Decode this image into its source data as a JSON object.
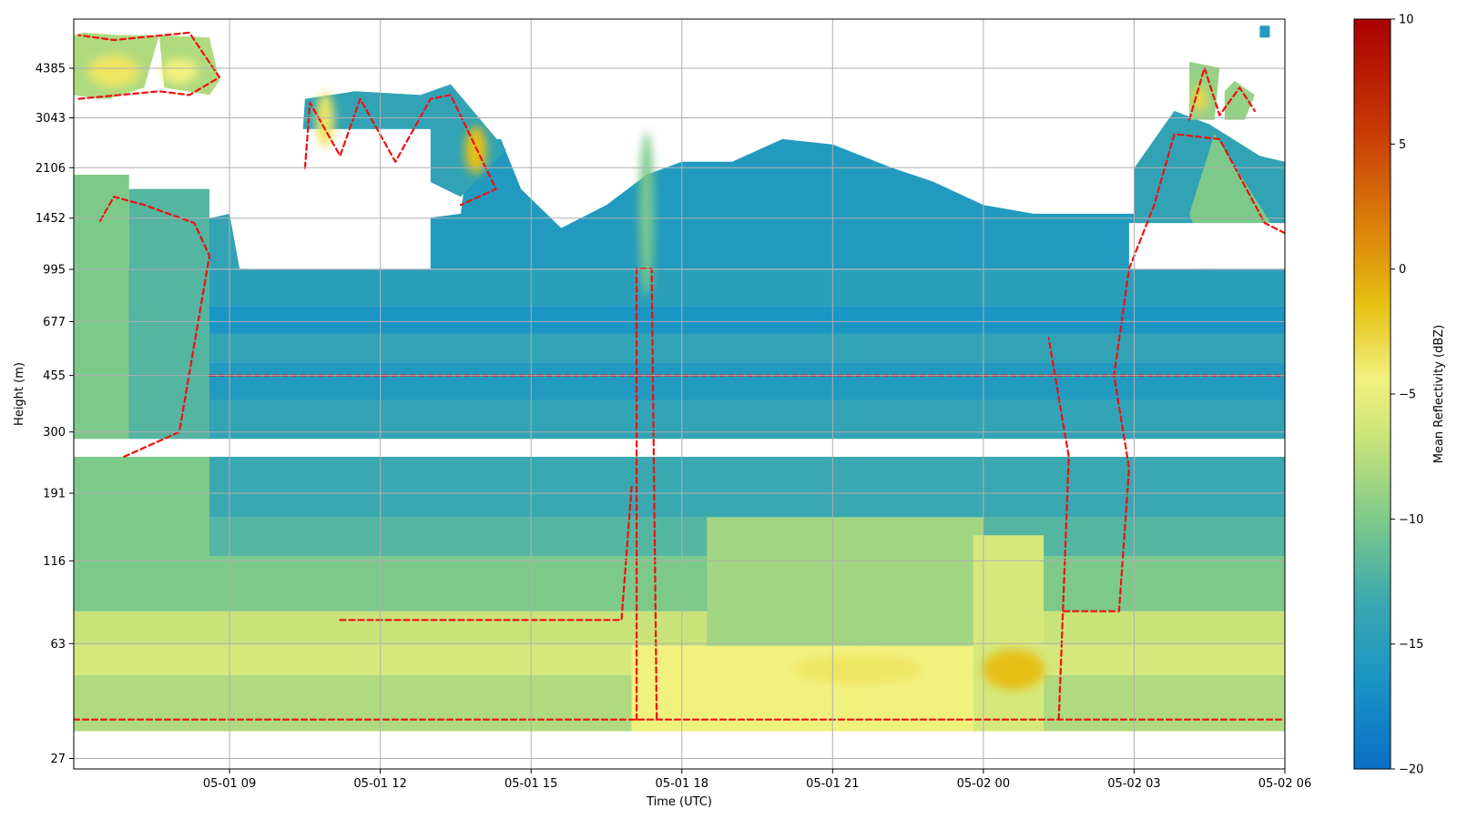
{
  "chart_data": {
    "type": "heatmap",
    "title": "",
    "xlabel": "Time (UTC)",
    "ylabel": "Height (m)",
    "x_ticks": [
      "05-01 09",
      "05-01 12",
      "05-01 15",
      "05-01 18",
      "05-01 21",
      "05-02 00",
      "05-02 03",
      "05-02 06"
    ],
    "x_range_hours": [
      5.9,
      30.0
    ],
    "y_ticks": [
      "27",
      "63",
      "116",
      "191",
      "300",
      "455",
      "677",
      "995",
      "1452",
      "2106",
      "3043",
      "4385"
    ],
    "y_scale": "log",
    "y_range": [
      25,
      6300
    ],
    "grid": true,
    "colorbar": {
      "label": "Mean Reflectivity (dBZ)",
      "range": [
        -20,
        10
      ],
      "ticks": [
        "10",
        "5",
        "0",
        "−5",
        "−10",
        "−15",
        "−20"
      ],
      "colors": [
        "#0a6fc7",
        "#1a95c4",
        "#3aa8b0",
        "#7cc98a",
        "#c9e37a",
        "#f1f17e",
        "#e6c012",
        "#de8e0a",
        "#c83a06",
        "#a90000"
      ]
    },
    "contour": {
      "level_dbz": -10,
      "color": "#ee1111",
      "style": "dashed"
    },
    "layers": [
      {
        "from_hour": 5.9,
        "to_hour": 30.0,
        "from_m": 33,
        "to_m": 250,
        "dbz": -14
      },
      {
        "from_hour": 5.9,
        "to_hour": 30.0,
        "from_m": 285,
        "to_m": 1000,
        "dbz": -16
      },
      {
        "from_hour": 8.5,
        "to_hour": 27.0,
        "from_m": 1000,
        "to_m": 2600,
        "dbz": -17
      },
      {
        "from_hour": 17.0,
        "to_hour": 25.0,
        "from_m": 33,
        "to_m": 80,
        "dbz": -7
      },
      {
        "from_hour": 23.8,
        "to_hour": 25.3,
        "from_m": 33,
        "to_m": 80,
        "dbz": -3
      },
      {
        "from_hour": 6.0,
        "to_hour": 8.8,
        "from_m": 3600,
        "to_m": 6000,
        "dbz": -8
      },
      {
        "from_hour": 13.2,
        "to_hour": 13.9,
        "from_m": 1700,
        "to_m": 3800,
        "dbz": -5
      },
      {
        "from_hour": 28.1,
        "to_hour": 29.0,
        "from_m": 2700,
        "to_m": 4600,
        "dbz": -9
      }
    ]
  }
}
